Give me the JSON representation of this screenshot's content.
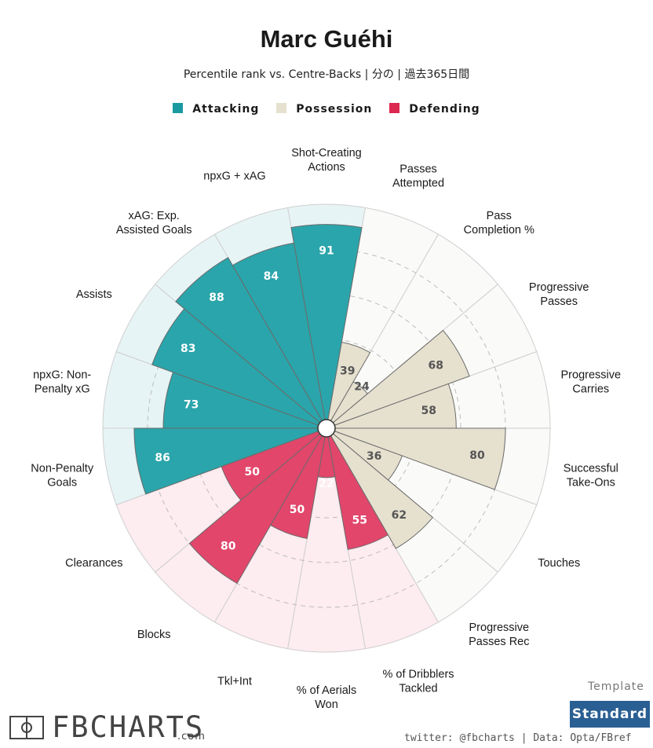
{
  "header": {
    "title": "Marc Guéhi",
    "subtitle": "Percentile rank vs. Centre-Backs | 分の | 過去365日間"
  },
  "legend": [
    {
      "label": "Attacking",
      "color": "#1a9aa0"
    },
    {
      "label": "Possession",
      "color": "#e6e0cf"
    },
    {
      "label": "Defending",
      "color": "#dc2751"
    }
  ],
  "colors": {
    "Attacking": {
      "fill": "#2aa5ab",
      "bg": "#e7f4f5"
    },
    "Possession": {
      "fill": "#e6e0cf",
      "bg": "#fafaf8"
    },
    "Defending": {
      "fill": "#e2466b",
      "bg": "#fdecf0"
    }
  },
  "chart_data": {
    "type": "radar",
    "title": "Marc Guéhi",
    "subtitle": "Percentile rank vs. Centre-Backs | 分の | 過去365日間",
    "rlim": [
      0,
      100
    ],
    "categories": [
      {
        "label": "Shot-Creating Actions",
        "value": 91,
        "group": "Attacking"
      },
      {
        "label": "Passes Attempted",
        "value": 39,
        "group": "Possession"
      },
      {
        "label": "Pass Completion %",
        "value": 24,
        "group": "Possession"
      },
      {
        "label": "Progressive Passes",
        "value": 68,
        "group": "Possession"
      },
      {
        "label": "Progressive Carries",
        "value": 58,
        "group": "Possession"
      },
      {
        "label": "Successful Take-Ons",
        "value": 80,
        "group": "Possession"
      },
      {
        "label": "Touches",
        "value": 36,
        "group": "Possession"
      },
      {
        "label": "Progressive Passes Rec",
        "value": 62,
        "group": "Possession"
      },
      {
        "label": "% of Dribblers Tackled",
        "value": 55,
        "group": "Defending"
      },
      {
        "label": "% of Aerials Won",
        "value": 22,
        "group": "Defending"
      },
      {
        "label": "Tkl+Int",
        "value": 50,
        "group": "Defending"
      },
      {
        "label": "Blocks",
        "value": 80,
        "group": "Defending"
      },
      {
        "label": "Clearances",
        "value": 50,
        "group": "Defending"
      },
      {
        "label": "Non-Penalty Goals",
        "value": 86,
        "group": "Attacking"
      },
      {
        "label": "npxG: Non-Penalty xG",
        "value": 73,
        "group": "Attacking"
      },
      {
        "label": "Assists",
        "value": 83,
        "group": "Attacking"
      },
      {
        "label": "xAG: Exp. Assisted Goals",
        "value": 88,
        "group": "Attacking"
      },
      {
        "label": "npxG + xAG",
        "value": 84,
        "group": "Attacking"
      }
    ]
  },
  "footer": {
    "template_label": "Template",
    "template_value": "Standard",
    "credits": "twitter: @fbcharts | Data: Opta/FBref",
    "brand": "FBCHARTS",
    "brand_suffix": ".com"
  }
}
